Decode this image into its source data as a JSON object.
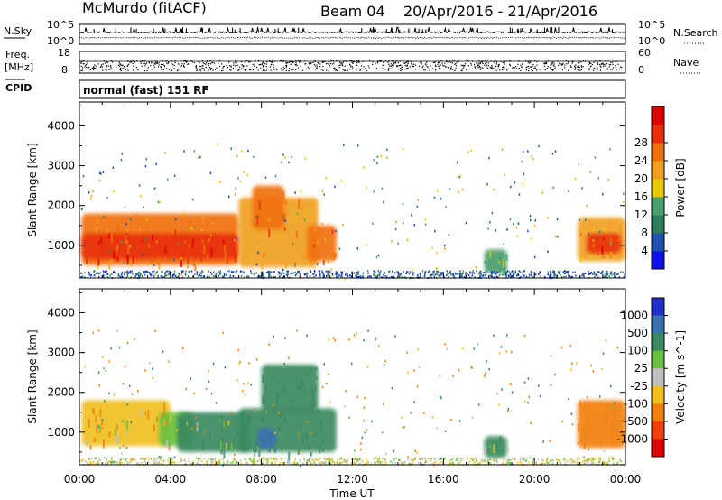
{
  "header": {
    "station": "McMurdo (fitACF)",
    "beam": "Beam 04",
    "dates": "20/Apr/2016 - 21/Apr/2016"
  },
  "top_strips": {
    "nsky_label": "N.Sky",
    "nsky_ticks": [
      "10^5",
      "10^0"
    ],
    "nsearch_label": "N.Search",
    "nsearch_ticks": [
      "10^5",
      "10^0"
    ],
    "freq_label_1": "Freq.",
    "freq_label_2": "[MHz]",
    "freq_ticks": [
      "18",
      "8"
    ],
    "nave_label": "Nave",
    "nave_ticks": [
      "60",
      "0"
    ],
    "cpid_label": "CPID",
    "cpid_text": "normal (fast) 151 RF"
  },
  "chart_data": [
    {
      "type": "heatmap",
      "title": "",
      "quantity": "Power",
      "ylabel": "Slant Range [km]",
      "xlim": [
        0,
        24
      ],
      "ylim": [
        180,
        4600
      ],
      "y_ticks": [
        1000,
        2000,
        3000,
        4000
      ],
      "colorbar_label": "Power [dB]",
      "colorbar_ticks": [
        "4",
        "8",
        "12",
        "16",
        "20",
        "24",
        "28"
      ],
      "colorbar_colors": [
        "#1010e8",
        "#2050b0",
        "#2e7d5c",
        "#4a9f6e",
        "#e8c800",
        "#f0a020",
        "#f07010",
        "#e83010",
        "#e00000"
      ],
      "regions": [
        {
          "x0": 0.1,
          "x1": 7.0,
          "y0": 500,
          "y1": 1800,
          "value": 24
        },
        {
          "x0": 0.1,
          "x1": 7.0,
          "y0": 650,
          "y1": 1300,
          "value": 30
        },
        {
          "x0": 7.0,
          "x1": 10.5,
          "y0": 450,
          "y1": 2200,
          "value": 22
        },
        {
          "x0": 7.6,
          "x1": 9.0,
          "y0": 1400,
          "y1": 2500,
          "value": 26
        },
        {
          "x0": 10.0,
          "x1": 11.3,
          "y0": 600,
          "y1": 1500,
          "value": 25
        },
        {
          "x0": 17.8,
          "x1": 18.8,
          "y0": 300,
          "y1": 900,
          "value": 12
        },
        {
          "x0": 21.9,
          "x1": 24.0,
          "y0": 600,
          "y1": 1700,
          "value": 22
        },
        {
          "x0": 22.3,
          "x1": 23.8,
          "y0": 800,
          "y1": 1300,
          "value": 30
        }
      ]
    },
    {
      "type": "heatmap",
      "title": "",
      "quantity": "Velocity",
      "ylabel": "Slant Range [km]",
      "xlabel": "Time UT",
      "xlim": [
        0,
        24
      ],
      "ylim": [
        180,
        4600
      ],
      "x_ticks": [
        "00:00",
        "04:00",
        "08:00",
        "12:00",
        "16:00",
        "20:00",
        "00:00"
      ],
      "y_ticks": [
        1000,
        2000,
        3000,
        4000
      ],
      "colorbar_label": "Velocity [m s^-1]",
      "colorbar_ticks": [
        "1000",
        "500",
        "100",
        "25",
        "-25",
        "-100",
        "-500",
        "-1000"
      ],
      "colorbar_colors": [
        "#2030c8",
        "#3a72b0",
        "#3a8a60",
        "#6ac040",
        "#c0c0c0",
        "#f0c020",
        "#f08010",
        "#f04010",
        "#e00000"
      ],
      "regions": [
        {
          "x0": 0.1,
          "x1": 4.0,
          "y0": 650,
          "y1": 1800,
          "value": -100
        },
        {
          "x0": 3.5,
          "x1": 5.0,
          "y0": 650,
          "y1": 1500,
          "value": 25
        },
        {
          "x0": 4.3,
          "x1": 7.5,
          "y0": 500,
          "y1": 1500,
          "value": 100
        },
        {
          "x0": 7.0,
          "x1": 11.3,
          "y0": 500,
          "y1": 1600,
          "value": 300
        },
        {
          "x0": 8.0,
          "x1": 10.5,
          "y0": 1500,
          "y1": 2700,
          "value": 300
        },
        {
          "x0": 7.8,
          "x1": 8.6,
          "y0": 600,
          "y1": 1100,
          "value": 800
        },
        {
          "x0": 17.8,
          "x1": 18.8,
          "y0": 350,
          "y1": 900,
          "value": 100
        },
        {
          "x0": 21.9,
          "x1": 24.0,
          "y0": 600,
          "y1": 1800,
          "value": -300
        }
      ]
    }
  ]
}
